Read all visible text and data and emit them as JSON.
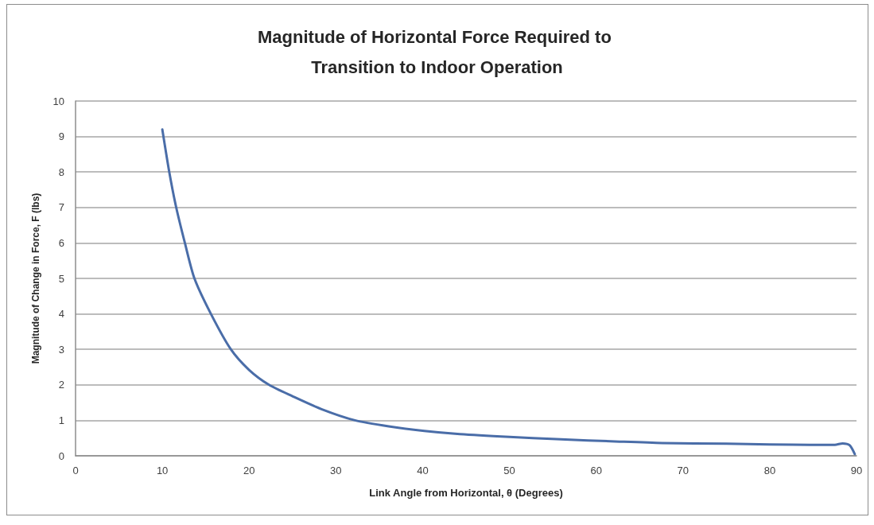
{
  "chart_data": {
    "type": "line",
    "title": "Magnitude of Horizontal Force Required to Transition to Indoor Operation",
    "xlabel": "Link Angle from Horizontal, θ (Degrees)",
    "ylabel": "Magnitude of Change in Force, F (lbs)",
    "x": [
      10,
      10.8,
      11.6,
      12.6,
      13.7,
      15.6,
      17.9,
      20,
      22.3,
      25,
      28.4,
      32.2,
      36.1,
      40.2,
      44.3,
      50,
      55.4,
      62.7,
      67.6,
      75,
      80,
      85.2,
      87.5,
      88.4,
      89.2,
      89.8
    ],
    "values": [
      9.2,
      8.0,
      7.0,
      6.0,
      5.0,
      4.0,
      3.0,
      2.42,
      2.0,
      1.68,
      1.31,
      1.0,
      0.83,
      0.7,
      0.61,
      0.53,
      0.47,
      0.4,
      0.36,
      0.34,
      0.32,
      0.31,
      0.31,
      0.35,
      0.3,
      0.05
    ],
    "color": "#4a6da8",
    "xlim": [
      0,
      90
    ],
    "xticks": [
      0,
      10,
      20,
      30,
      40,
      50,
      60,
      70,
      80,
      90
    ],
    "ylim": [
      0,
      10
    ],
    "yticks": [
      0,
      1,
      2,
      3,
      4,
      5,
      6,
      7,
      8,
      9,
      10
    ],
    "grid": "y",
    "marker": "none",
    "line_style": "solid"
  }
}
